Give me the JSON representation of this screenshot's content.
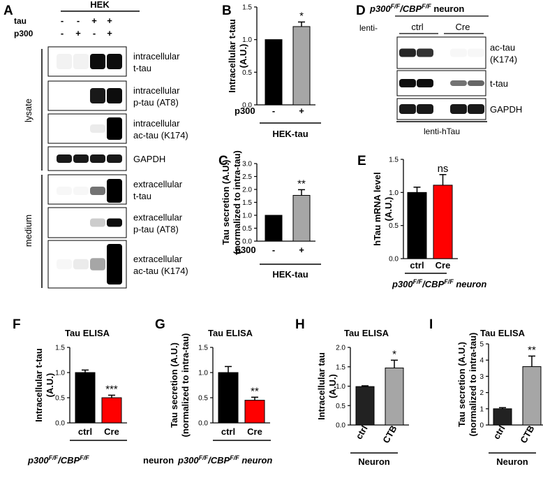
{
  "panels": {
    "A": "A",
    "B": "B",
    "C": "C",
    "D": "D",
    "E": "E",
    "F": "F",
    "G": "G",
    "H": "H",
    "I": "I"
  },
  "blot_a": {
    "header": "HEK",
    "row_labels": [
      "tau",
      "p300"
    ],
    "conditions": [
      [
        "-",
        "-"
      ],
      [
        "-",
        "+"
      ],
      [
        "+",
        "-"
      ],
      [
        "+",
        "+"
      ]
    ],
    "group_labels": [
      "lysate",
      "medium"
    ],
    "bands": [
      [
        "intracellular",
        "t-tau"
      ],
      [
        "intracellular",
        "p-tau (AT8)"
      ],
      [
        "intracellular",
        "ac-tau (K174)"
      ],
      [
        "GAPDH"
      ],
      [
        "extracellular",
        "t-tau"
      ],
      [
        "extracellular",
        "p-tau (AT8)"
      ],
      [
        "extracellular",
        "ac-tau (K174)"
      ]
    ],
    "intensities": [
      [
        0.05,
        0.05,
        0.95,
        0.95
      ],
      [
        0.0,
        0.0,
        0.9,
        0.95
      ],
      [
        0.0,
        0.0,
        0.08,
        1.0
      ],
      [
        0.9,
        0.9,
        0.9,
        0.9
      ],
      [
        0.03,
        0.03,
        0.55,
        1.0
      ],
      [
        0.0,
        0.0,
        0.2,
        0.95
      ],
      [
        0.03,
        0.08,
        0.35,
        1.0
      ]
    ]
  },
  "blot_d": {
    "title": "p300F/F/CBPF/F neuron",
    "title_main": "p300",
    "title_sup1": "F/F",
    "title_mid": "/CBP",
    "title_sup2": "F/F",
    "title_end": " neuron",
    "lenti_label": "lenti-",
    "groups": [
      "ctrl",
      "Cre"
    ],
    "bands": [
      [
        "ac-tau",
        "(K174)"
      ],
      [
        "t-tau"
      ],
      [
        "GAPDH"
      ]
    ],
    "intensities": [
      [
        0.85,
        0.8,
        0.03,
        0.03
      ],
      [
        0.95,
        0.95,
        0.55,
        0.6
      ],
      [
        0.9,
        0.9,
        0.9,
        0.9
      ]
    ],
    "footer": "lenti-hTau"
  },
  "genotype_label": {
    "main": "p300",
    "sup1": "F/F",
    "mid": "/CBP",
    "sup2": "F/F",
    "end": " neuron"
  },
  "colors": {
    "black_bar": "#000000",
    "gray_bar": "#a6a6a6",
    "red_bar": "#ff0000",
    "dark_bar": "#222222"
  },
  "chart_data": [
    {
      "panel": "B",
      "type": "bar",
      "title": "",
      "ylabel": "Intracellular t-tau (A.U.)",
      "ylabel_lines": [
        "Intracellular t-tau",
        "(A.U.)"
      ],
      "ylim": [
        0,
        1.5
      ],
      "yticks": [
        "0.0",
        "0.5",
        "1.0",
        "1.5"
      ],
      "categories": [
        "-",
        "+"
      ],
      "x_row_label": "p300",
      "values": [
        1.0,
        1.2
      ],
      "errors": [
        0,
        0.07
      ],
      "colors": [
        "#000000",
        "#a6a6a6"
      ],
      "significance": "*",
      "group_label": "HEK-tau"
    },
    {
      "panel": "C",
      "type": "bar",
      "title": "",
      "ylabel": "Tau secretion (A.U.) (normalized to intra-tau)",
      "ylabel_lines": [
        "Tau secretion (A.U.)",
        "(normalized to intra-tau)"
      ],
      "ylim": [
        0,
        3.0
      ],
      "yticks": [
        "0.0",
        "0.5",
        "1.0",
        "1.5",
        "2.0",
        "2.5",
        "3.0"
      ],
      "categories": [
        "-",
        "+"
      ],
      "x_row_label": "p300",
      "values": [
        1.0,
        1.77
      ],
      "errors": [
        0,
        0.22
      ],
      "colors": [
        "#000000",
        "#a6a6a6"
      ],
      "significance": "**",
      "group_label": "HEK-tau"
    },
    {
      "panel": "E",
      "type": "bar",
      "title": "",
      "ylabel": "hTau mRNA level (A.U.)",
      "ylabel_lines": [
        "hTau mRNA level",
        "(A.U.)"
      ],
      "ylim": [
        0,
        1.5
      ],
      "yticks": [
        "0.0",
        "0.5",
        "1.0",
        "1.5"
      ],
      "categories": [
        "ctrl",
        "Cre"
      ],
      "values": [
        1.0,
        1.11
      ],
      "errors": [
        0.08,
        0.16
      ],
      "colors": [
        "#000000",
        "#ff0000"
      ],
      "significance": "ns",
      "group_label": ""
    },
    {
      "panel": "F",
      "type": "bar",
      "title": "Tau ELISA",
      "ylabel": "Intracellular t-tau (A.U.)",
      "ylabel_lines": [
        "Intracellular t-tau",
        "(A.U.)"
      ],
      "ylim": [
        0,
        1.5
      ],
      "yticks": [
        "0.0",
        "0.5",
        "1.0",
        "1.5"
      ],
      "categories": [
        "ctrl",
        "Cre"
      ],
      "values": [
        1.0,
        0.5
      ],
      "errors": [
        0.05,
        0.05
      ],
      "colors": [
        "#000000",
        "#ff0000"
      ],
      "significance": "***",
      "group_label": "neuron"
    },
    {
      "panel": "G",
      "type": "bar",
      "title": "Tau ELISA",
      "ylabel": "Tau secretion (A.U.) (normalized to intra-tau)",
      "ylabel_lines": [
        "Tau secretion (A.U.)",
        "(normalized to intra-tau)"
      ],
      "ylim": [
        0,
        1.5
      ],
      "yticks": [
        "0.0",
        "0.5",
        "1.0",
        "1.5"
      ],
      "categories": [
        "ctrl",
        "Cre"
      ],
      "values": [
        1.0,
        0.45
      ],
      "errors": [
        0.12,
        0.06
      ],
      "colors": [
        "#000000",
        "#ff0000"
      ],
      "significance": "**",
      "group_label": ""
    },
    {
      "panel": "H",
      "type": "bar",
      "title": "Tau ELISA",
      "ylabel": "Intracellular tau (A.U.)",
      "ylabel_lines": [
        "Intracellular tau",
        "(A.U.)"
      ],
      "ylim": [
        0,
        2.0
      ],
      "yticks": [
        "0.0",
        "0.5",
        "1.0",
        "1.5",
        "2.0"
      ],
      "categories": [
        "ctrl",
        "CTB"
      ],
      "values": [
        0.99,
        1.47
      ],
      "errors": [
        0.02,
        0.2
      ],
      "colors": [
        "#222222",
        "#a6a6a6"
      ],
      "significance": "*",
      "group_label": "Neuron"
    },
    {
      "panel": "I",
      "type": "bar",
      "title": "Tau ELISA",
      "ylabel": "Tau secretion (A.U.) (normalized to intra-tau)",
      "ylabel_lines": [
        "Tau secretion (A.U.)",
        "(normalized to intra-tau)"
      ],
      "ylim": [
        0,
        5
      ],
      "yticks": [
        "0",
        "1",
        "2",
        "3",
        "4",
        "5"
      ],
      "categories": [
        "ctrl",
        "CTB"
      ],
      "values": [
        1.0,
        3.6
      ],
      "errors": [
        0.07,
        0.65
      ],
      "colors": [
        "#222222",
        "#a6a6a6"
      ],
      "significance": "**",
      "group_label": "Neuron"
    }
  ]
}
